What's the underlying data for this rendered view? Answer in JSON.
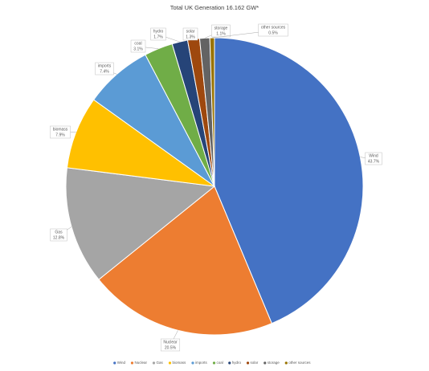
{
  "chart_data": {
    "type": "pie",
    "title": "Total UK Generation 16.162 GW*",
    "categories": [
      "Wind",
      "Nuclear",
      "Gas",
      "biomass",
      "imports",
      "coal",
      "hydro",
      "solar",
      "storage",
      "other sources"
    ],
    "values": [
      43.7,
      20.5,
      12.8,
      7.9,
      7.4,
      3.1,
      1.7,
      1.3,
      1.1,
      0.5
    ],
    "value_labels": [
      "43.7%",
      "20.5%",
      "12.8%",
      "7.9%",
      "7.4%",
      "3.1%",
      "1.7%",
      "1.3%",
      "1.1%",
      "0.5%"
    ],
    "colors": [
      "#4472c4",
      "#ed7d31",
      "#a5a5a5",
      "#ffc000",
      "#5b9bd5",
      "#70ad47",
      "#264478",
      "#9e480e",
      "#636363",
      "#997300"
    ],
    "legend": "bottom"
  }
}
